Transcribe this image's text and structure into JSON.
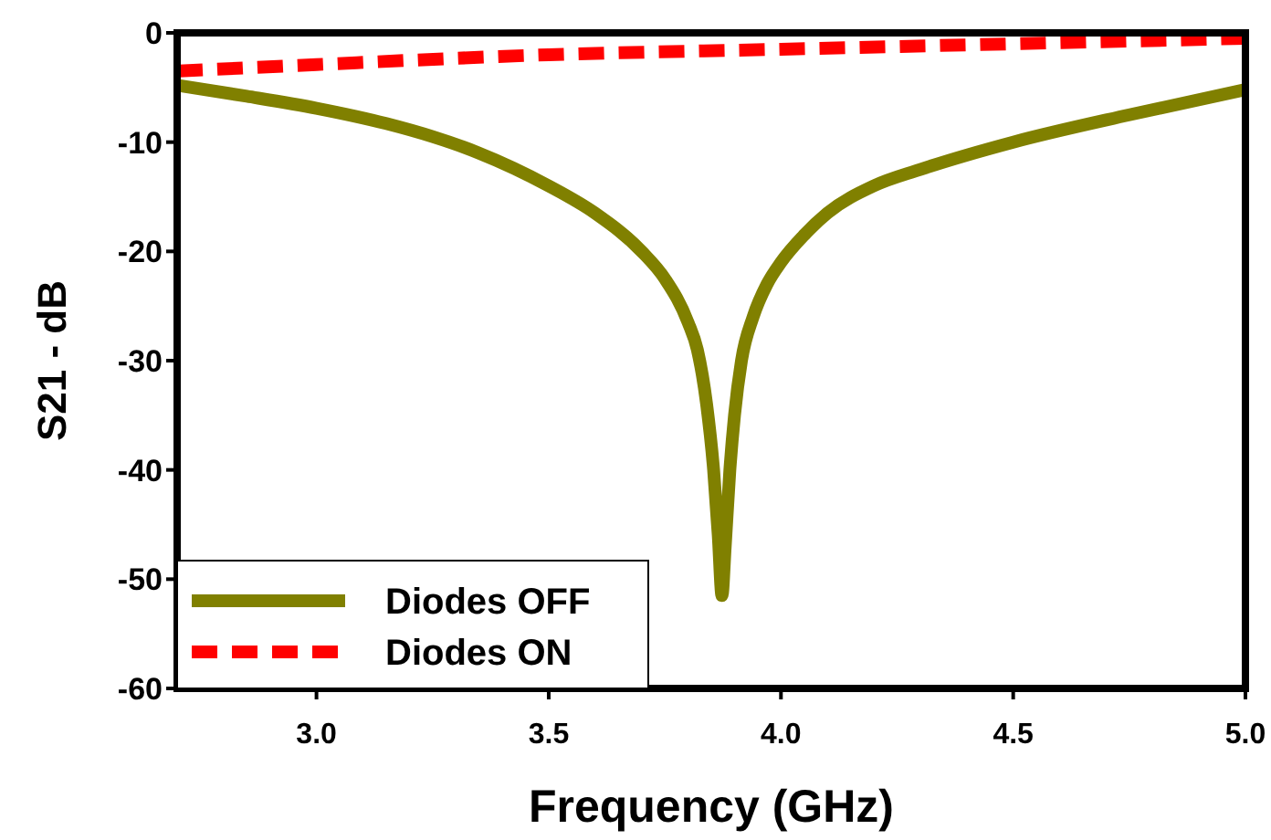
{
  "chart_data": {
    "type": "line",
    "xlabel": "Frequency (GHz)",
    "ylabel": "S21 - dB",
    "xlim": [
      2.7,
      5.0
    ],
    "ylim": [
      -60,
      0
    ],
    "xticks": [
      {
        "value": 3,
        "label": "3.0"
      },
      {
        "value": 3.5,
        "label": "3.5"
      },
      {
        "value": 4,
        "label": "4.0"
      },
      {
        "value": 4.5,
        "label": "4.5"
      },
      {
        "value": 5,
        "label": "5.0"
      }
    ],
    "yticks": [
      0,
      -10,
      -20,
      -30,
      -40,
      -50,
      -60
    ],
    "grid": false,
    "legend": "bottom left",
    "marker": "none",
    "series": [
      {
        "name": "Diodes OFF",
        "color": "#808000",
        "line_style": "solid",
        "x": [
          2.7,
          2.85,
          3.0,
          3.15,
          3.25,
          3.35,
          3.5,
          3.6,
          3.7,
          3.75,
          3.8,
          3.82,
          3.84,
          3.855,
          3.865,
          3.873,
          3.88,
          3.89,
          3.9,
          3.915,
          3.94,
          3.97,
          4.0,
          4.05,
          4.1,
          4.2,
          4.3,
          4.5,
          4.75,
          5.0
        ],
        "values": [
          -4.8,
          -5.8,
          -6.9,
          -8.3,
          -9.5,
          -11,
          -14,
          -16.5,
          -20,
          -22.5,
          -26.5,
          -29,
          -34,
          -40,
          -46,
          -51.5,
          -47,
          -40,
          -35,
          -30,
          -26,
          -23,
          -21,
          -18.5,
          -16.5,
          -14,
          -12.5,
          -10,
          -7.5,
          -5.2
        ]
      },
      {
        "name": "Diodes ON",
        "color": "#ff0000",
        "line_style": "dashed",
        "x": [
          2.7,
          3.0,
          3.5,
          4.0,
          4.5,
          5.0
        ],
        "values": [
          -3.5,
          -2.9,
          -2.0,
          -1.5,
          -1.0,
          -0.5
        ]
      }
    ]
  }
}
